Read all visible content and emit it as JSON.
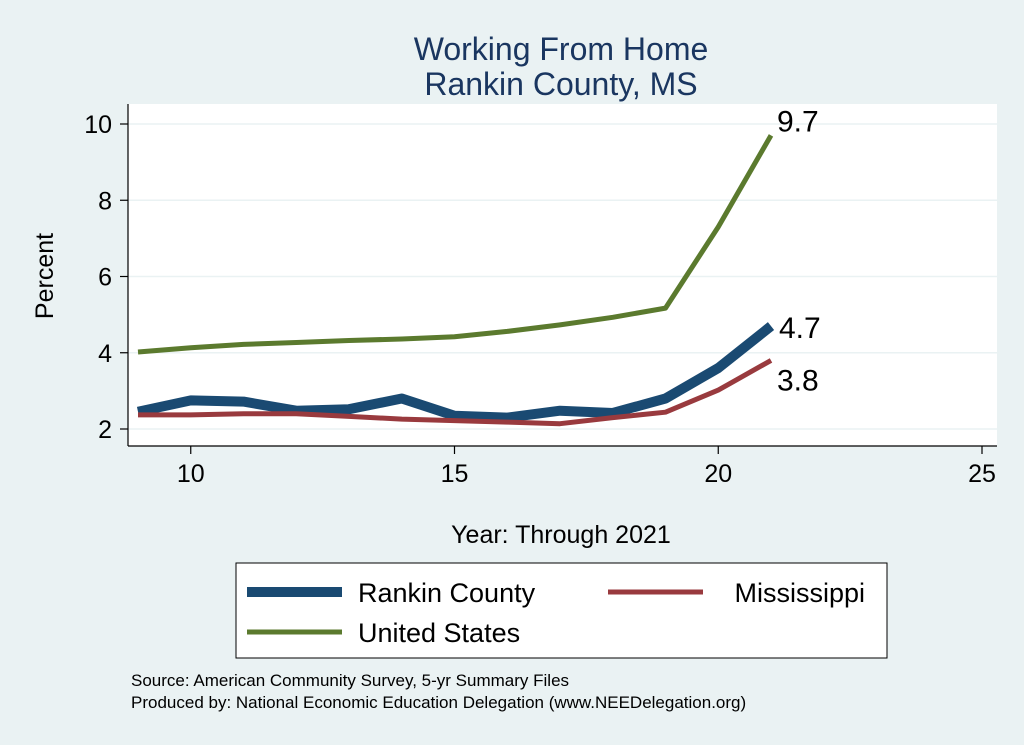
{
  "chart_data": {
    "type": "line",
    "title": [
      "Working From Home",
      "Rankin County, MS"
    ],
    "xlabel": "Year: Through 2021",
    "ylabel": "Percent",
    "xlim": [
      9,
      25
    ],
    "ylim": [
      2,
      10
    ],
    "x_ticks": [
      10,
      15,
      20,
      25
    ],
    "y_ticks": [
      2,
      4,
      6,
      8,
      10
    ],
    "grid": true,
    "legend_position": "bottom",
    "series": [
      {
        "name": "Rankin County",
        "color": "#1a4a72",
        "x": [
          9,
          10,
          11,
          12,
          13,
          14,
          15,
          16,
          17,
          18,
          19,
          20,
          21
        ],
        "y": [
          2.45,
          2.75,
          2.72,
          2.48,
          2.52,
          2.8,
          2.35,
          2.3,
          2.48,
          2.42,
          2.8,
          3.6,
          4.7
        ],
        "end_label": "4.7"
      },
      {
        "name": "Mississippi",
        "color": "#993a3e",
        "x": [
          9,
          10,
          11,
          12,
          13,
          14,
          15,
          16,
          17,
          18,
          19,
          20,
          21
        ],
        "y": [
          2.37,
          2.37,
          2.4,
          2.4,
          2.33,
          2.26,
          2.22,
          2.18,
          2.14,
          2.3,
          2.44,
          3.02,
          3.8
        ],
        "end_label": "3.8"
      },
      {
        "name": "United States",
        "color": "#5b7a2e",
        "x": [
          9,
          10,
          11,
          12,
          13,
          14,
          15,
          16,
          17,
          18,
          19,
          20,
          21
        ],
        "y": [
          4.02,
          4.13,
          4.22,
          4.27,
          4.32,
          4.36,
          4.42,
          4.56,
          4.73,
          4.93,
          5.17,
          7.3,
          9.7
        ],
        "end_label": "9.7"
      }
    ]
  },
  "notes": [
    "Source: American Community Survey, 5-yr Summary Files",
    "Produced by: National Economic Education Delegation (www.NEEDelegation.org)"
  ]
}
